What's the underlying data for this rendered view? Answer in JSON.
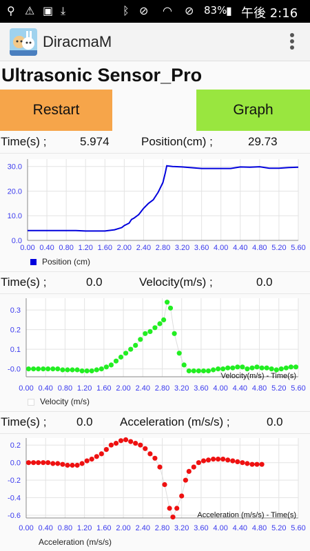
{
  "statusbar": {
    "battery": "83%",
    "time": "午後 2:16"
  },
  "app": {
    "title": "DiracmaM"
  },
  "page": {
    "title": "Ultrasonic Sensor_Pro"
  },
  "buttons": {
    "restart": "Restart",
    "graph": "Graph"
  },
  "readouts": {
    "row1": {
      "time_label": "Time(s) ;",
      "time_value": "5.974",
      "label2": "Position(cm) ;",
      "value2": "29.73"
    },
    "row2": {
      "time_label": "Time(s) ;",
      "time_value": "0.0",
      "label2": "Velocity(m/s) ;",
      "value2": "0.0"
    },
    "row3": {
      "time_label": "Time(s) ;",
      "time_value": "0.0",
      "label2": "Acceleration (m/s/s) ;",
      "value2": "0.0"
    }
  },
  "colors": {
    "position": "#0000dd",
    "velocity": "#22ee22",
    "acceleration": "#ee1111",
    "restart": "#f6a54a",
    "graph": "#99e63f"
  },
  "chart_data": [
    {
      "type": "line",
      "legend": "Position (cm)",
      "x_ticks": [
        "0.00",
        "0.40",
        "0.80",
        "1.20",
        "1.60",
        "2.00",
        "2.40",
        "2.80",
        "3.20",
        "3.60",
        "4.00",
        "4.40",
        "4.80",
        "5.20",
        "5.60"
      ],
      "y_ticks": [
        "0.0",
        "10.0",
        "20.0",
        "30.0"
      ],
      "xlim": [
        0,
        5.6
      ],
      "ylim": [
        0,
        33
      ],
      "x": [
        0.0,
        0.4,
        0.8,
        1.0,
        1.2,
        1.4,
        1.6,
        1.8,
        1.95,
        2.0,
        2.1,
        2.15,
        2.2,
        2.3,
        2.4,
        2.5,
        2.6,
        2.7,
        2.8,
        2.85,
        2.88,
        3.0,
        3.2,
        3.4,
        3.6,
        3.8,
        4.0,
        4.2,
        4.4,
        4.6,
        4.8,
        5.0,
        5.2,
        5.4,
        5.6
      ],
      "y": [
        4.0,
        4.0,
        4.0,
        4.0,
        3.8,
        3.8,
        3.8,
        4.3,
        5.2,
        6.0,
        7.0,
        8.5,
        9.0,
        10.5,
        13.0,
        15.0,
        16.5,
        19.5,
        23.5,
        27.5,
        30.3,
        30.0,
        29.8,
        29.5,
        29.2,
        29.2,
        29.2,
        29.2,
        29.8,
        29.7,
        29.9,
        29.3,
        29.3,
        29.6,
        29.7
      ],
      "series_name": ""
    },
    {
      "type": "scatter",
      "legend": "Velocity (m/s)",
      "annotation": "Velocity(m/s) - Time(s)",
      "x_ticks": [
        "0.00",
        "0.40",
        "0.80",
        "1.20",
        "1.60",
        "2.00",
        "2.40",
        "2.80",
        "3.20",
        "3.60",
        "4.00",
        "4.40",
        "4.80",
        "5.20",
        "5.60"
      ],
      "y_ticks": [
        "-0.0",
        "0.1",
        "0.2",
        "0.3"
      ],
      "xlim": [
        0,
        5.6
      ],
      "ylim": [
        -0.04,
        0.36
      ],
      "x": [
        0.05,
        0.15,
        0.25,
        0.35,
        0.45,
        0.55,
        0.65,
        0.75,
        0.85,
        0.95,
        1.05,
        1.15,
        1.25,
        1.35,
        1.45,
        1.55,
        1.65,
        1.75,
        1.85,
        1.95,
        2.05,
        2.15,
        2.25,
        2.35,
        2.45,
        2.55,
        2.65,
        2.75,
        2.83,
        2.9,
        2.97,
        3.05,
        3.15,
        3.25,
        3.35,
        3.45,
        3.55,
        3.65,
        3.75,
        3.85,
        3.95,
        4.05,
        4.15,
        4.25,
        4.35,
        4.45,
        4.55,
        4.65,
        4.75,
        4.85,
        4.95,
        5.05,
        5.15,
        5.25,
        5.35,
        5.45,
        5.55
      ],
      "y": [
        0.0,
        0.0,
        0.0,
        0.0,
        0.0,
        0.0,
        0.0,
        -0.005,
        -0.005,
        -0.005,
        -0.005,
        -0.01,
        -0.01,
        -0.01,
        -0.005,
        0.0,
        0.01,
        0.02,
        0.04,
        0.06,
        0.08,
        0.1,
        0.12,
        0.15,
        0.18,
        0.19,
        0.21,
        0.23,
        0.25,
        0.34,
        0.31,
        0.18,
        0.08,
        0.02,
        -0.01,
        -0.01,
        -0.01,
        -0.01,
        -0.01,
        -0.005,
        0.0,
        0.0,
        0.005,
        0.005,
        0.01,
        0.01,
        0.0,
        0.005,
        0.01,
        0.005,
        0.005,
        0.0,
        -0.005,
        0.0,
        0.005,
        0.01,
        0.01
      ],
      "series_name": ""
    },
    {
      "type": "scatter",
      "legend": "Acceleration (m/s/s)",
      "annotation": "Acceleration (m/s/s) - Time(s)",
      "x_ticks": [
        "0.00",
        "0.40",
        "0.80",
        "1.20",
        "1.60",
        "2.00",
        "2.40",
        "2.80",
        "3.20",
        "3.60",
        "4.00",
        "4.40",
        "4.80",
        "5.20",
        "5.60"
      ],
      "y_ticks": [
        "0.2",
        "0.0",
        "-0.2",
        "-0.4",
        "-0.6"
      ],
      "xlim": [
        0,
        5.6
      ],
      "ylim": [
        -0.63,
        0.28
      ],
      "x": [
        0.05,
        0.15,
        0.25,
        0.35,
        0.45,
        0.55,
        0.65,
        0.75,
        0.85,
        0.95,
        1.05,
        1.15,
        1.25,
        1.35,
        1.45,
        1.55,
        1.65,
        1.75,
        1.85,
        1.95,
        2.05,
        2.15,
        2.25,
        2.35,
        2.45,
        2.55,
        2.65,
        2.75,
        2.85,
        2.95,
        3.02,
        3.1,
        3.2,
        3.28,
        3.35,
        3.45,
        3.55,
        3.65,
        3.75,
        3.85,
        3.95,
        4.05,
        4.15,
        4.25,
        4.35,
        4.45,
        4.55,
        4.65,
        4.75,
        4.85
      ],
      "y": [
        0.0,
        0.0,
        0.0,
        0.0,
        0.0,
        -0.01,
        -0.01,
        -0.02,
        -0.03,
        -0.03,
        -0.03,
        -0.01,
        0.02,
        0.04,
        0.07,
        0.1,
        0.15,
        0.2,
        0.22,
        0.25,
        0.26,
        0.24,
        0.22,
        0.2,
        0.16,
        0.1,
        0.05,
        -0.05,
        -0.25,
        -0.52,
        -0.62,
        -0.52,
        -0.38,
        -0.2,
        -0.1,
        -0.05,
        0.0,
        0.02,
        0.03,
        0.04,
        0.04,
        0.04,
        0.03,
        0.02,
        0.01,
        0.0,
        -0.01,
        -0.02,
        -0.02,
        -0.02
      ],
      "series_name": ""
    }
  ]
}
